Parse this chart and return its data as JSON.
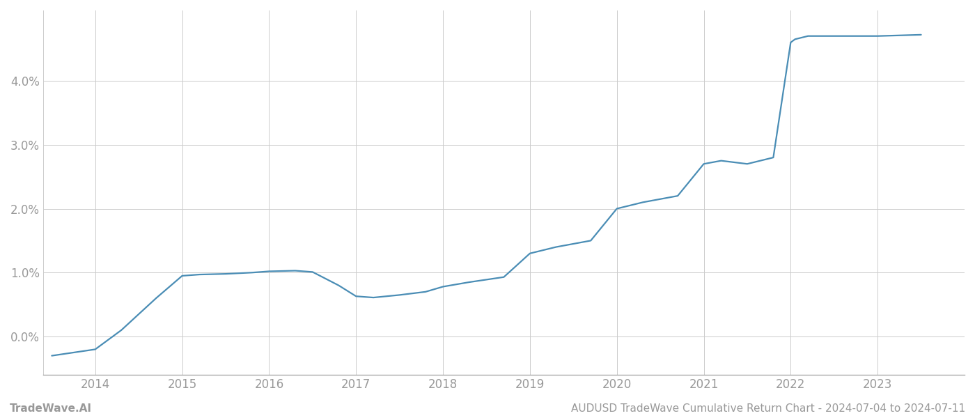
{
  "x_years": [
    2013.5,
    2014.0,
    2014.3,
    2014.7,
    2015.0,
    2015.2,
    2015.5,
    2015.8,
    2016.0,
    2016.3,
    2016.5,
    2016.8,
    2017.0,
    2017.2,
    2017.5,
    2017.8,
    2018.0,
    2018.3,
    2018.7,
    2019.0,
    2019.3,
    2019.7,
    2020.0,
    2020.3,
    2020.7,
    2021.0,
    2021.2,
    2021.5,
    2021.8,
    2022.0,
    2022.05,
    2022.2,
    2022.5,
    2022.8,
    2023.0,
    2023.5
  ],
  "y_values": [
    -0.003,
    -0.002,
    0.001,
    0.006,
    0.0095,
    0.0097,
    0.0098,
    0.01,
    0.0102,
    0.0103,
    0.0101,
    0.008,
    0.0063,
    0.0061,
    0.0065,
    0.007,
    0.0078,
    0.0085,
    0.0093,
    0.013,
    0.014,
    0.015,
    0.02,
    0.021,
    0.022,
    0.027,
    0.0275,
    0.027,
    0.028,
    0.046,
    0.0465,
    0.047,
    0.047,
    0.047,
    0.047,
    0.0472
  ],
  "line_color": "#4a8db5",
  "line_width": 1.6,
  "background_color": "#ffffff",
  "grid_color": "#cccccc",
  "grid_linewidth": 0.7,
  "tick_color": "#999999",
  "xlabel_color": "#999999",
  "ylabel_color": "#999999",
  "x_ticks": [
    2014,
    2015,
    2016,
    2017,
    2018,
    2019,
    2020,
    2021,
    2022,
    2023
  ],
  "y_ticks": [
    0.0,
    0.01,
    0.02,
    0.03,
    0.04
  ],
  "y_tick_labels": [
    "0.0%",
    "1.0%",
    "2.0%",
    "3.0%",
    "4.0%"
  ],
  "ylim": [
    -0.006,
    0.051
  ],
  "xlim": [
    2013.4,
    2024.0
  ],
  "tick_fontsize": 12,
  "footer_left": "TradeWave.AI",
  "footer_right": "AUDUSD TradeWave Cumulative Return Chart - 2024-07-04 to 2024-07-11",
  "footer_color": "#999999",
  "footer_fontsize": 11
}
